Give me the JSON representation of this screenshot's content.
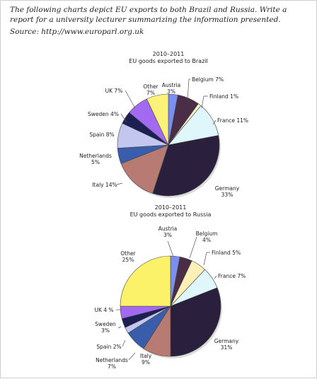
{
  "header": {
    "instruction": "The following charts depict EU exports to both Brazil and Russia.  Write a report for a university lecturer summarizing the information presented.",
    "source": "Source: http://www.europarl.org.uk"
  },
  "chart_data": [
    {
      "type": "pie",
      "title": "2010–2011",
      "subtitle": "EU goods exported to Brazil",
      "slices": [
        {
          "label": "Austria",
          "pct_label": "3%",
          "value": 3,
          "color": "#7b8ff0"
        },
        {
          "label": "Belgium",
          "pct_label": "7%",
          "value": 7,
          "color": "#4a2e48"
        },
        {
          "label": "Finland",
          "pct_label": "1%",
          "value": 1,
          "color": "#fdf7c8"
        },
        {
          "label": "France",
          "pct_label": "11%",
          "value": 11,
          "color": "#dff6fb"
        },
        {
          "label": "Germany",
          "pct_label": "33%",
          "value": 33,
          "color": "#2a203d"
        },
        {
          "label": "Italy",
          "pct_label": "14%",
          "value": 14,
          "color": "#b87b73"
        },
        {
          "label": "Netherlands",
          "pct_label": "5%",
          "value": 5,
          "color": "#3a5dab"
        },
        {
          "label": "Spain",
          "pct_label": "8%",
          "value": 8,
          "color": "#c3c6ef"
        },
        {
          "label": "Sweden",
          "pct_label": "4%",
          "value": 4,
          "color": "#1c1f52"
        },
        {
          "label": "UK",
          "pct_label": "7%",
          "value": 7,
          "color": "#a26af0"
        },
        {
          "label": "Other",
          "pct_label": "7%",
          "value": 7,
          "color": "#fcf27a"
        }
      ]
    },
    {
      "type": "pie",
      "title": "2010–2011",
      "subtitle": "EU goods exported to Russia",
      "slices": [
        {
          "label": "Austria",
          "pct_label": "3%",
          "value": 3,
          "color": "#7b8ff0"
        },
        {
          "label": "Belgium",
          "pct_label": "4%",
          "value": 4,
          "color": "#4a2e48"
        },
        {
          "label": "Finland",
          "pct_label": "5%",
          "value": 5,
          "color": "#fdf0b6"
        },
        {
          "label": "France",
          "pct_label": "7%",
          "value": 7,
          "color": "#dff6fb"
        },
        {
          "label": "Germany",
          "pct_label": "31%",
          "value": 31,
          "color": "#2a203d"
        },
        {
          "label": "Italy",
          "pct_label": "9%",
          "value": 9,
          "color": "#b87b73"
        },
        {
          "label": "Netherlands",
          "pct_label": "7%",
          "value": 7,
          "color": "#3a5dab"
        },
        {
          "label": "Spain",
          "pct_label": "2%",
          "value": 2,
          "color": "#c3c6ef"
        },
        {
          "label": "Sweden",
          "pct_label": "3%",
          "value": 3,
          "color": "#1c1f52"
        },
        {
          "label": "UK",
          "pct_label": "4 %",
          "value": 4,
          "color": "#a26af0"
        },
        {
          "label": "Other",
          "pct_label": "25%",
          "value": 25,
          "color": "#fcf26a"
        }
      ]
    }
  ]
}
